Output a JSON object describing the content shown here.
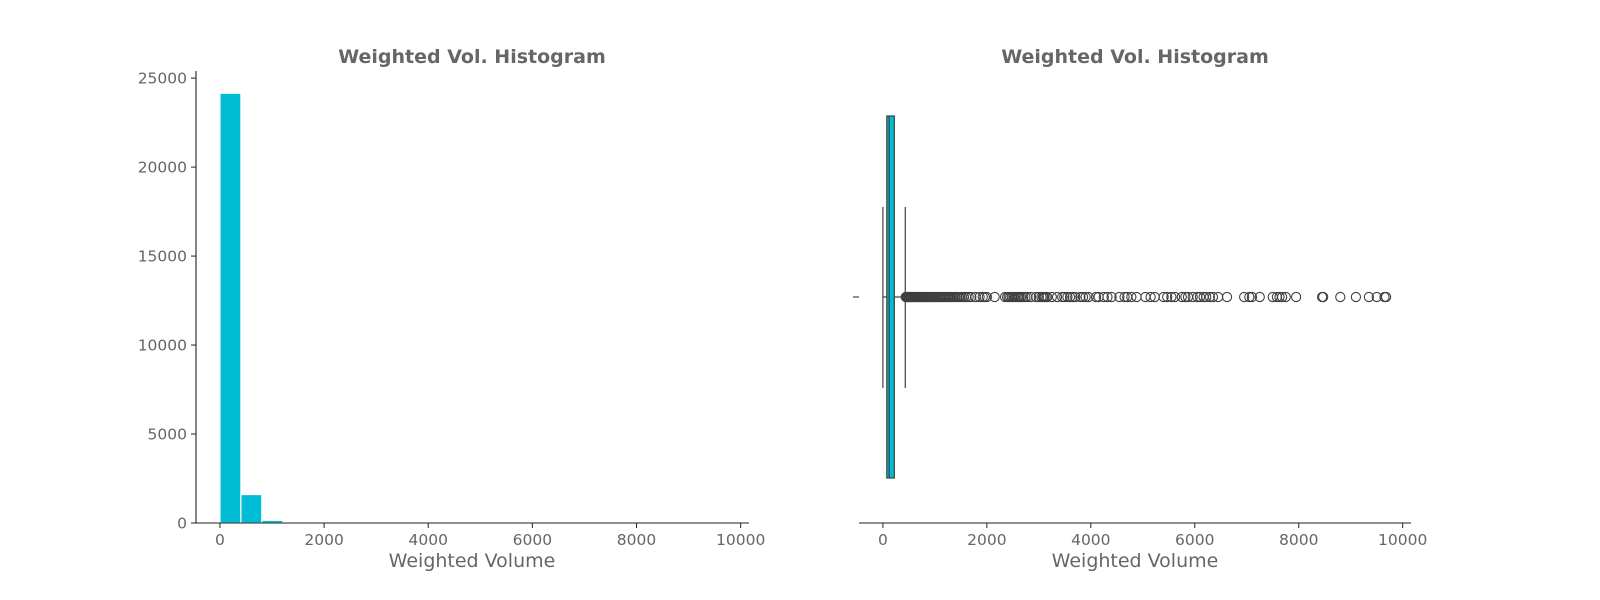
{
  "colors": {
    "bar": "#00bcd4",
    "box": "#00bcd4",
    "edge": "#3f3f3f",
    "text": "#666666"
  },
  "chart_data": [
    {
      "type": "bar",
      "title": "Weighted Vol. Histogram",
      "xlabel": "Weighted Volume",
      "ylabel": "",
      "xlim": [
        -460,
        10160
      ],
      "ylim": [
        0,
        25400
      ],
      "xticks": [
        "0",
        "2000",
        "4000",
        "6000",
        "8000",
        "10000"
      ],
      "xtick_values": [
        0,
        2000,
        4000,
        6000,
        8000,
        10000
      ],
      "yticks": [
        "0",
        "5000",
        "10000",
        "15000",
        "20000",
        "25000"
      ],
      "ytick_values": [
        0,
        5000,
        10000,
        15000,
        20000,
        25000
      ],
      "bin_width": 402,
      "bins": [
        0,
        402,
        804
      ],
      "values": [
        24150,
        1600,
        150
      ]
    },
    {
      "type": "box",
      "title": "Weighted Vol. Histogram",
      "xlabel": "Weighted Volume",
      "xlim": [
        -460,
        10160
      ],
      "xticks": [
        "0",
        "2000",
        "4000",
        "6000",
        "8000",
        "10000"
      ],
      "xtick_values": [
        0,
        2000,
        4000,
        6000,
        8000,
        10000
      ],
      "ytick_labels": [
        ""
      ],
      "whisker_low": 0,
      "q1": 75,
      "median": 120,
      "q3": 220,
      "whisker_high": 430,
      "outliers": [
        440,
        455,
        470,
        485,
        500,
        515,
        530,
        545,
        560,
        575,
        590,
        605,
        620,
        640,
        660,
        680,
        700,
        720,
        740,
        760,
        780,
        800,
        820,
        840,
        860,
        880,
        900,
        920,
        940,
        960,
        980,
        1000,
        1025,
        1050,
        1075,
        1100,
        1125,
        1150,
        1175,
        1200,
        1225,
        1250,
        1275,
        1300,
        1325,
        1350,
        1375,
        1400,
        1430,
        1460,
        1490,
        1520,
        1560,
        1600,
        1650,
        1700,
        1780,
        1860,
        1920,
        1960,
        2000,
        2150,
        2350,
        2390,
        2420,
        2450,
        2480,
        2510,
        2540,
        2570,
        2600,
        2630,
        2660,
        2700,
        2740,
        2780,
        2850,
        2950,
        3000,
        3050,
        3080,
        3100,
        3130,
        3160,
        3250,
        3350,
        3450,
        3490,
        3550,
        3600,
        3650,
        3700,
        3800,
        3850,
        3900,
        3960,
        4100,
        4150,
        4250,
        4320,
        4400,
        4550,
        4650,
        4700,
        4780,
        4880,
        5050,
        5150,
        5230,
        5400,
        5470,
        5550,
        5620,
        5750,
        5820,
        5870,
        5960,
        6050,
        6100,
        6170,
        6220,
        6290,
        6350,
        6450,
        6620,
        6950,
        7050,
        7100,
        7250,
        7500,
        7580,
        7630,
        7680,
        7750,
        7950,
        8450,
        8470,
        8800,
        9100,
        9350,
        9500,
        9650,
        9680
      ]
    }
  ]
}
